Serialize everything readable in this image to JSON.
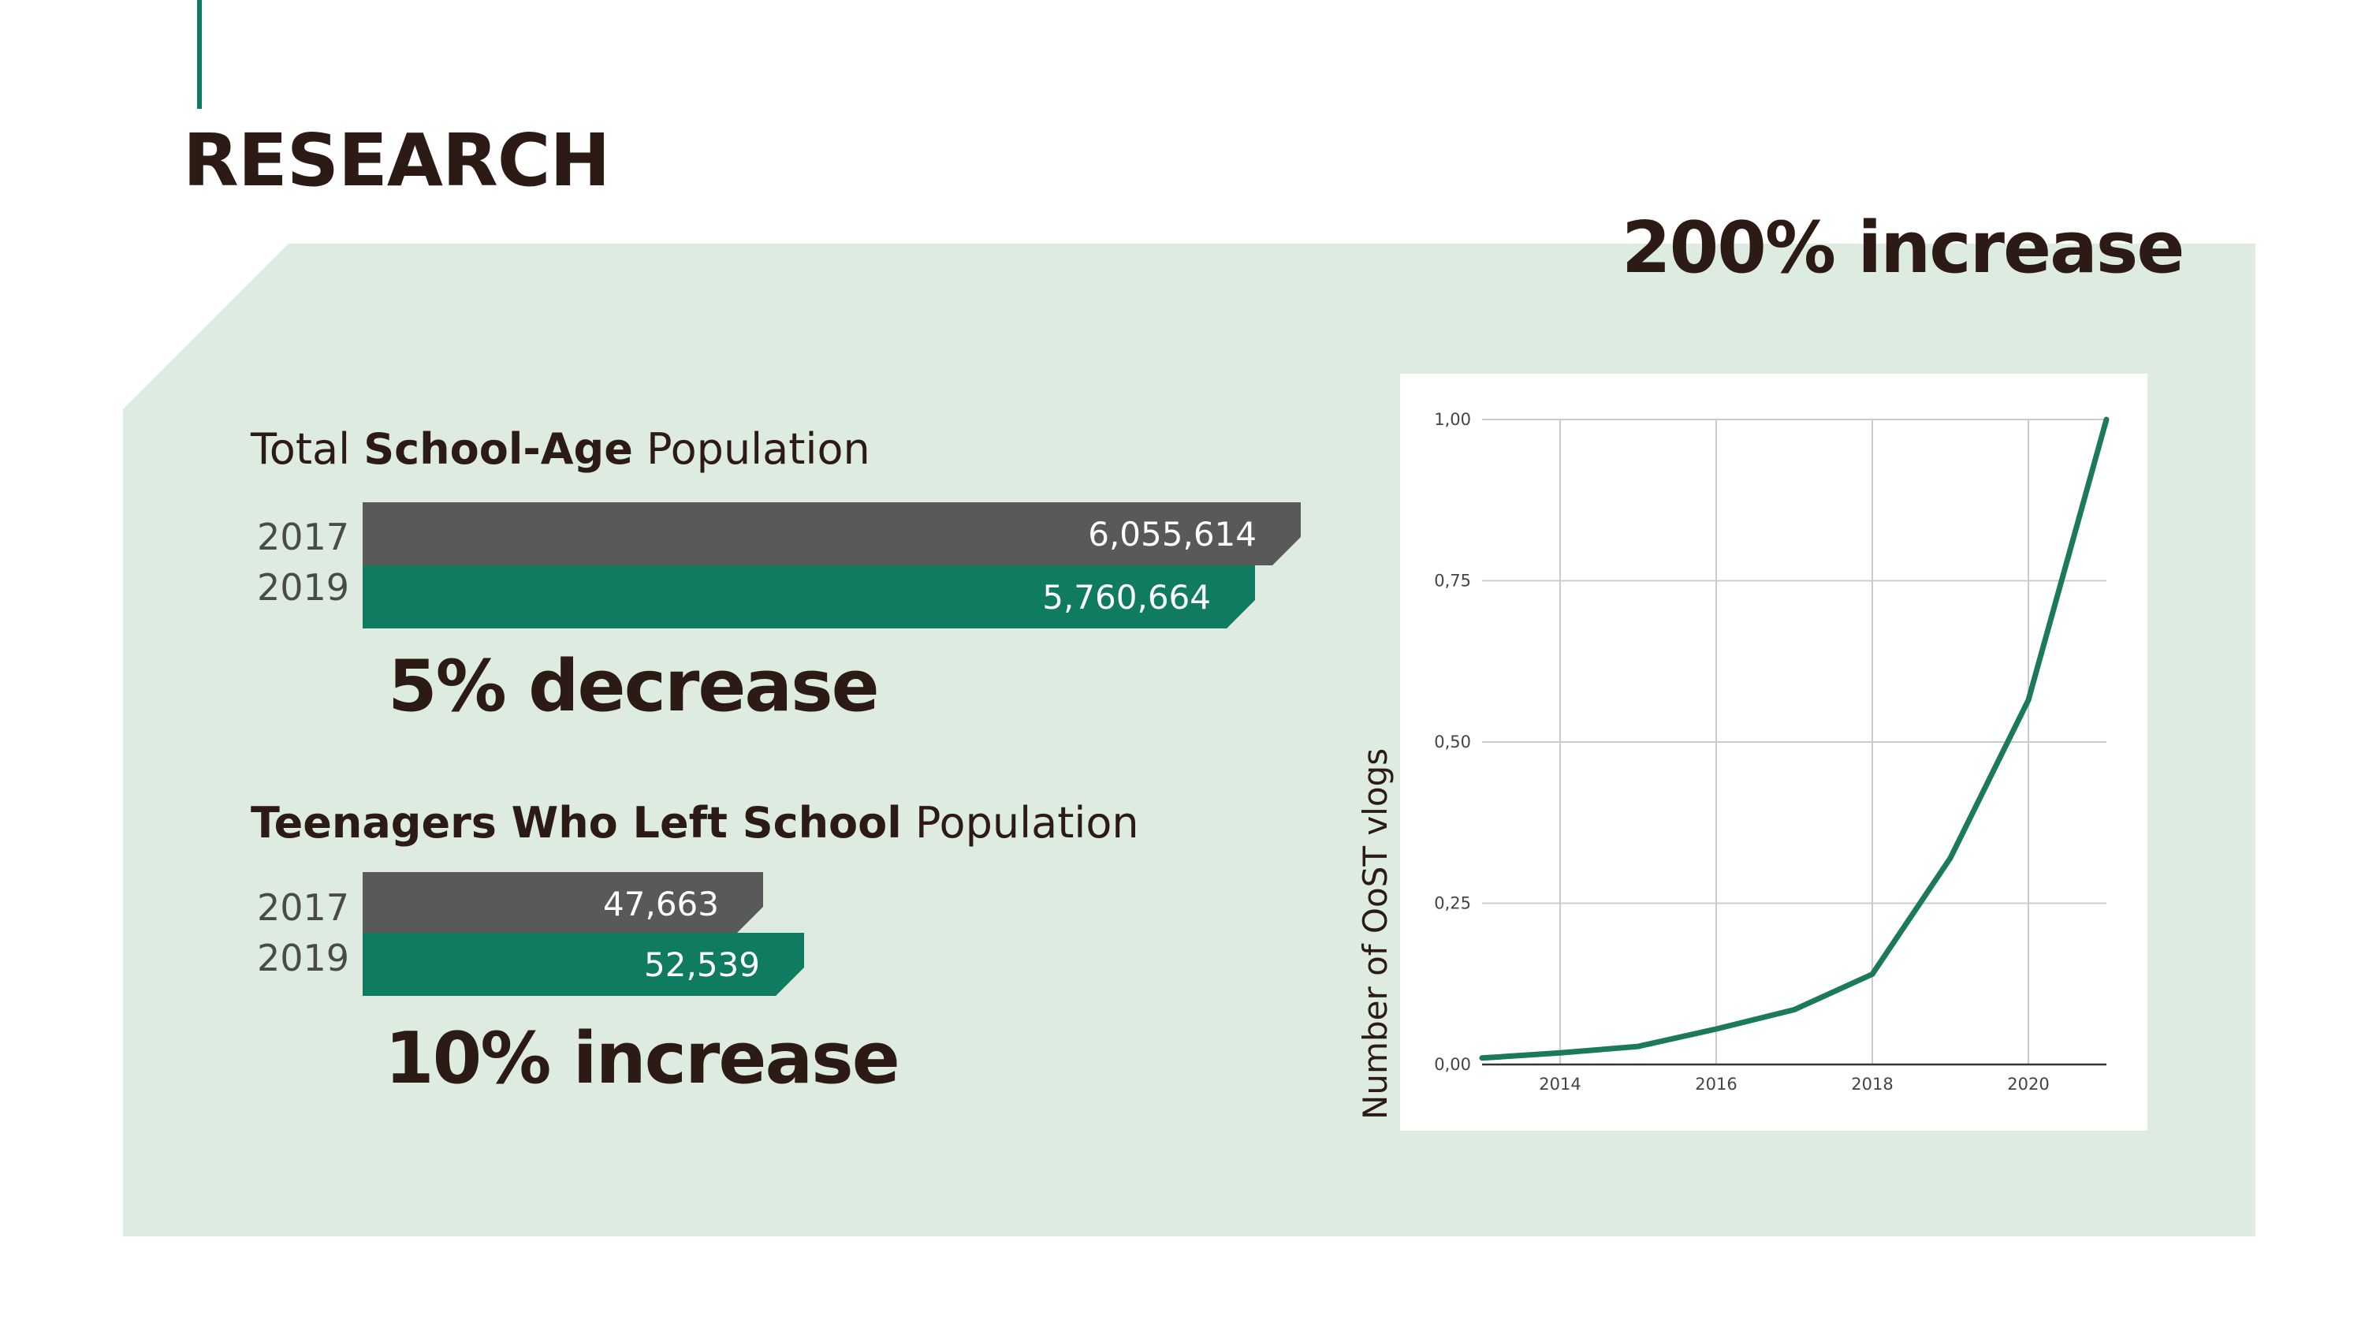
{
  "page": {
    "title": "RESEARCH"
  },
  "headlines": {
    "chart_change": "200% increase",
    "school_age_change": "5% decrease",
    "left_school_change": "10% increase"
  },
  "sections": [
    {
      "title_pre": "Total ",
      "title_bold": "School-Age",
      "title_post": " Population",
      "rows": [
        {
          "year": "2017",
          "label": "6,055,614",
          "value": 6055614
        },
        {
          "year": "2019",
          "label": "5,760,664",
          "value": 5760664
        }
      ]
    },
    {
      "title_pre": "",
      "title_bold": "Teenagers Who Left School",
      "title_post": " Population",
      "rows": [
        {
          "year": "2017",
          "label": "47,663",
          "value": 47663
        },
        {
          "year": "2019",
          "label": "52,539",
          "value": 52539
        }
      ]
    }
  ],
  "chart_data": [
    {
      "type": "bar",
      "title": "Total School-Age Population",
      "categories": [
        "2017",
        "2019"
      ],
      "values": [
        6055614,
        5760664
      ],
      "orientation": "horizontal"
    },
    {
      "type": "bar",
      "title": "Teenagers Who Left School Population",
      "categories": [
        "2017",
        "2019"
      ],
      "values": [
        47663,
        52539
      ],
      "orientation": "horizontal"
    },
    {
      "type": "line",
      "ylabel": "Number of OoST vlogs",
      "xlabel": "",
      "xlim": [
        2013,
        2021
      ],
      "ylim": [
        0,
        1
      ],
      "x_ticks": [
        "2014",
        "2016",
        "2018",
        "2020"
      ],
      "y_ticks": [
        "0,00",
        "0,25",
        "0,50",
        "0,75",
        "1,00"
      ],
      "grid": true,
      "color": "#1b7a5a",
      "x": [
        2013,
        2014,
        2015,
        2016,
        2017,
        2018,
        2019,
        2020,
        2021
      ],
      "values": [
        0.01,
        0.018,
        0.028,
        0.055,
        0.085,
        0.14,
        0.32,
        0.565,
        1.0
      ]
    }
  ],
  "colors": {
    "accent": "#0f7b61",
    "bar_2017": "#595959",
    "bar_2019": "#0f7b61",
    "panel": "#ddebe1",
    "text": "#2b1b14"
  }
}
